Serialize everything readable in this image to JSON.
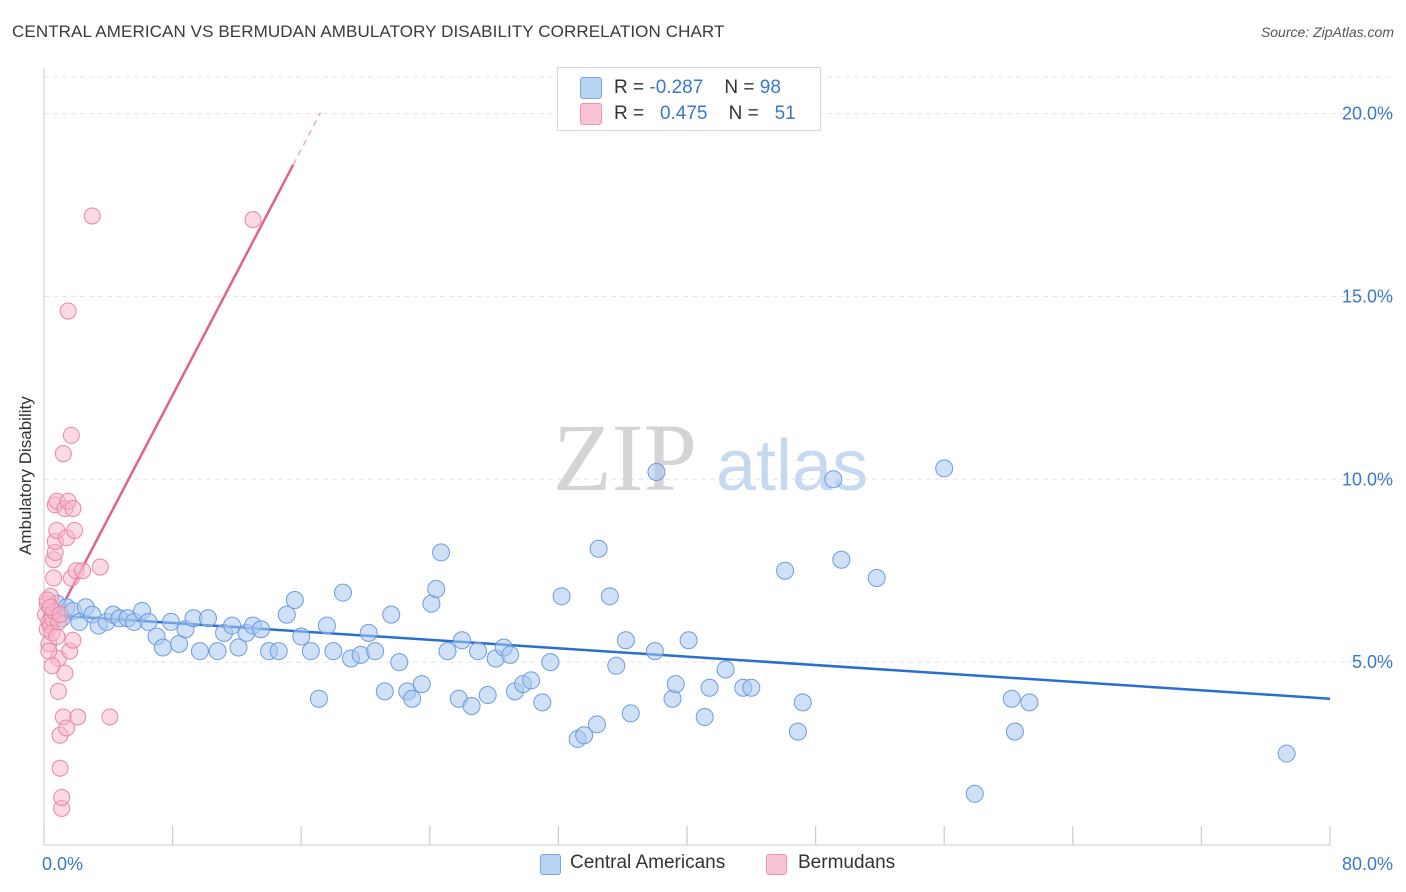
{
  "title": "CENTRAL AMERICAN VS BERMUDAN AMBULATORY DISABILITY CORRELATION CHART",
  "source": "Source: ZipAtlas.com",
  "legend": {
    "rows": [
      {
        "r_label": "R =",
        "r_value": "-0.287",
        "n_label": "N =",
        "n_value": "98"
      },
      {
        "r_label": "R =",
        "r_value": "0.475",
        "n_label": "N =",
        "n_value": "51"
      }
    ]
  },
  "bottom_legend": [
    "Central Americans",
    "Bermudans"
  ],
  "watermark": {
    "zip": "ZIP",
    "atlas": "atlas"
  },
  "colors": {
    "blue_fill": "#a9c8f0",
    "blue_stroke": "#6c9be0",
    "blue_line": "#2a6fcf",
    "pink_fill": "#f7b6c9",
    "pink_stroke": "#ea85a5",
    "pink_line": "#e0628c",
    "axis_text": "#3a78c9",
    "grid": "#e3e3e3"
  },
  "chart_data": {
    "type": "scatter",
    "title": "CENTRAL AMERICAN VS BERMUDAN AMBULATORY DISABILITY CORRELATION CHART",
    "xlabel": "",
    "ylabel": "Ambulatory Disability",
    "xlim": [
      0,
      80
    ],
    "ylim": [
      0,
      21
    ],
    "x_tick_labels": [
      "0.0%",
      "80.0%"
    ],
    "y_ticks": [
      5,
      10,
      15,
      20
    ],
    "y_tick_labels": [
      "5.0%",
      "10.0%",
      "15.0%",
      "20.0%"
    ],
    "grid": true,
    "series": [
      {
        "name": "Central Americans",
        "color": "#a9c8f0",
        "points": [
          [
            0.5,
            6.3
          ],
          [
            0.8,
            6.6
          ],
          [
            1.1,
            6.2
          ],
          [
            1.4,
            6.5
          ],
          [
            1.8,
            6.4
          ],
          [
            2.2,
            6.1
          ],
          [
            2.6,
            6.5
          ],
          [
            3.0,
            6.3
          ],
          [
            3.4,
            6.0
          ],
          [
            3.9,
            6.1
          ],
          [
            4.3,
            6.3
          ],
          [
            4.7,
            6.2
          ],
          [
            5.2,
            6.2
          ],
          [
            5.6,
            6.1
          ],
          [
            6.1,
            6.4
          ],
          [
            6.5,
            6.1
          ],
          [
            7.0,
            5.7
          ],
          [
            7.4,
            5.4
          ],
          [
            7.9,
            6.1
          ],
          [
            8.4,
            5.5
          ],
          [
            8.8,
            5.9
          ],
          [
            9.3,
            6.2
          ],
          [
            9.7,
            5.3
          ],
          [
            10.2,
            6.2
          ],
          [
            10.8,
            5.3
          ],
          [
            11.2,
            5.8
          ],
          [
            11.7,
            6.0
          ],
          [
            12.1,
            5.4
          ],
          [
            12.6,
            5.8
          ],
          [
            13.0,
            6.0
          ],
          [
            13.5,
            5.9
          ],
          [
            14.0,
            5.3
          ],
          [
            14.6,
            5.3
          ],
          [
            15.1,
            6.3
          ],
          [
            15.6,
            6.7
          ],
          [
            16.0,
            5.7
          ],
          [
            16.6,
            5.3
          ],
          [
            17.1,
            4.0
          ],
          [
            17.6,
            6.0
          ],
          [
            18.0,
            5.3
          ],
          [
            18.6,
            6.9
          ],
          [
            19.1,
            5.1
          ],
          [
            19.7,
            5.2
          ],
          [
            20.2,
            5.8
          ],
          [
            20.6,
            5.3
          ],
          [
            21.2,
            4.2
          ],
          [
            21.6,
            6.3
          ],
          [
            22.1,
            5.0
          ],
          [
            22.6,
            4.2
          ],
          [
            22.9,
            4.0
          ],
          [
            23.5,
            4.4
          ],
          [
            24.1,
            6.6
          ],
          [
            24.4,
            7.0
          ],
          [
            25.1,
            5.3
          ],
          [
            25.8,
            4.0
          ],
          [
            26.0,
            5.6
          ],
          [
            26.6,
            3.8
          ],
          [
            27.0,
            5.3
          ],
          [
            27.6,
            4.1
          ],
          [
            28.1,
            5.1
          ],
          [
            28.6,
            5.4
          ],
          [
            29.0,
            5.2
          ],
          [
            29.3,
            4.2
          ],
          [
            29.8,
            4.4
          ],
          [
            30.3,
            4.5
          ],
          [
            31.0,
            3.9
          ],
          [
            31.5,
            5.0
          ],
          [
            32.2,
            6.8
          ],
          [
            33.2,
            2.9
          ],
          [
            33.6,
            3.0
          ],
          [
            34.4,
            3.3
          ],
          [
            35.2,
            6.8
          ],
          [
            35.6,
            4.9
          ],
          [
            36.2,
            5.6
          ],
          [
            36.5,
            3.6
          ],
          [
            38.0,
            5.3
          ],
          [
            39.1,
            4.0
          ],
          [
            39.3,
            4.4
          ],
          [
            40.1,
            5.6
          ],
          [
            41.1,
            3.5
          ],
          [
            41.4,
            4.3
          ],
          [
            42.4,
            4.8
          ],
          [
            43.5,
            4.3
          ],
          [
            44.0,
            4.3
          ],
          [
            46.1,
            7.5
          ],
          [
            46.9,
            3.1
          ],
          [
            47.2,
            3.9
          ],
          [
            49.1,
            10.0
          ],
          [
            49.6,
            7.8
          ],
          [
            51.8,
            7.3
          ],
          [
            56.0,
            10.3
          ],
          [
            57.9,
            1.4
          ],
          [
            60.2,
            4.0
          ],
          [
            60.4,
            3.1
          ],
          [
            61.3,
            3.9
          ],
          [
            77.3,
            2.5
          ],
          [
            24.7,
            8.0
          ],
          [
            34.5,
            8.1
          ],
          [
            38.1,
            10.2
          ]
        ]
      },
      {
        "name": "Bermudans",
        "color": "#f7b6c9",
        "points": [
          [
            0.1,
            6.3
          ],
          [
            0.2,
            5.9
          ],
          [
            0.2,
            6.6
          ],
          [
            0.3,
            6.1
          ],
          [
            0.3,
            5.5
          ],
          [
            0.4,
            6.0
          ],
          [
            0.4,
            6.8
          ],
          [
            0.5,
            6.2
          ],
          [
            0.5,
            5.8
          ],
          [
            0.6,
            6.4
          ],
          [
            0.6,
            7.8
          ],
          [
            0.7,
            8.0
          ],
          [
            0.7,
            8.3
          ],
          [
            0.7,
            9.3
          ],
          [
            0.8,
            8.6
          ],
          [
            0.8,
            9.4
          ],
          [
            0.8,
            5.7
          ],
          [
            0.9,
            6.1
          ],
          [
            0.9,
            4.2
          ],
          [
            0.9,
            5.1
          ],
          [
            1.0,
            3.0
          ],
          [
            1.0,
            2.1
          ],
          [
            1.1,
            1.0
          ],
          [
            1.1,
            1.3
          ],
          [
            1.2,
            3.5
          ],
          [
            1.2,
            10.7
          ],
          [
            1.3,
            9.2
          ],
          [
            1.3,
            4.7
          ],
          [
            1.4,
            8.4
          ],
          [
            1.4,
            3.2
          ],
          [
            1.5,
            9.4
          ],
          [
            1.5,
            14.6
          ],
          [
            1.6,
            5.3
          ],
          [
            1.7,
            7.3
          ],
          [
            1.7,
            11.2
          ],
          [
            1.8,
            9.2
          ],
          [
            1.8,
            5.6
          ],
          [
            1.9,
            8.6
          ],
          [
            2.0,
            7.5
          ],
          [
            2.1,
            3.5
          ],
          [
            2.4,
            7.5
          ],
          [
            3.0,
            17.2
          ],
          [
            3.5,
            7.6
          ],
          [
            4.1,
            3.5
          ],
          [
            13.0,
            17.1
          ],
          [
            0.3,
            5.3
          ],
          [
            0.2,
            6.7
          ],
          [
            0.6,
            7.3
          ],
          [
            0.5,
            4.9
          ],
          [
            0.4,
            6.5
          ],
          [
            1.0,
            6.3
          ]
        ]
      }
    ],
    "trendlines": [
      {
        "series": "Central Americans",
        "x": [
          0,
          80
        ],
        "y": [
          6.3,
          4.0
        ]
      },
      {
        "series": "Bermudans",
        "x": [
          0.5,
          15.5
        ],
        "y": [
          6.0,
          18.6
        ]
      }
    ]
  }
}
